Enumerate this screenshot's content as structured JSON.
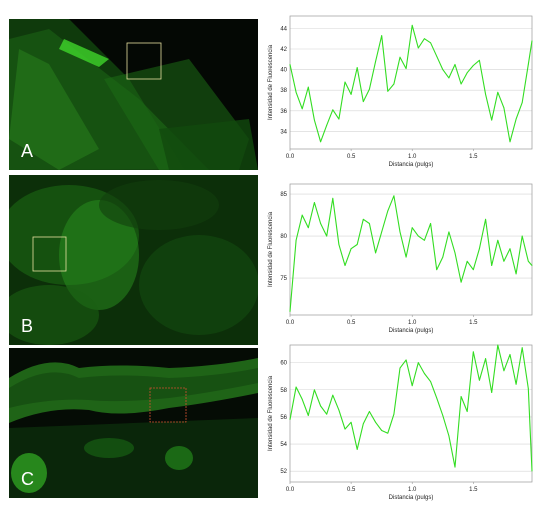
{
  "figure": {
    "panels": [
      {
        "letter": "A"
      },
      {
        "letter": "B"
      },
      {
        "letter": "C"
      }
    ],
    "colors": {
      "line": "#33dd22",
      "grid": "#d4d4d4",
      "frame": "#999999",
      "roi": "#e8e0a0",
      "roi_red": "#d05030"
    }
  },
  "chart_data": [
    {
      "type": "line",
      "xlabel": "Distancia (pulgs)",
      "ylabel": "Intensidad de Fluorescencia",
      "xlim": [
        0,
        1.98
      ],
      "ylim": [
        32.3,
        45.2
      ],
      "xticks": [
        0.0,
        0.5,
        1.0,
        1.5
      ],
      "xtick_labels": [
        "0.0",
        "0.5",
        "1.0",
        "1.5"
      ],
      "yticks": [
        34,
        36,
        38,
        40,
        42,
        44
      ],
      "ytick_labels": [
        "34",
        "36",
        "38",
        "40",
        "42",
        "44"
      ],
      "grid": true,
      "x": [
        0.0,
        0.05,
        0.1,
        0.15,
        0.2,
        0.25,
        0.3,
        0.35,
        0.4,
        0.45,
        0.5,
        0.55,
        0.6,
        0.65,
        0.7,
        0.75,
        0.8,
        0.85,
        0.9,
        0.95,
        1.0,
        1.05,
        1.1,
        1.15,
        1.2,
        1.25,
        1.3,
        1.35,
        1.4,
        1.45,
        1.5,
        1.55,
        1.6,
        1.65,
        1.7,
        1.75,
        1.8,
        1.85,
        1.9,
        1.95,
        1.98
      ],
      "y": [
        40.5,
        37.8,
        36.2,
        38.3,
        35.1,
        33.0,
        34.6,
        36.1,
        35.2,
        38.8,
        37.6,
        40.2,
        36.9,
        38.1,
        40.8,
        43.3,
        37.9,
        38.6,
        41.2,
        40.1,
        44.3,
        42.1,
        43.0,
        42.6,
        41.3,
        40.0,
        39.2,
        40.5,
        38.6,
        39.7,
        40.4,
        40.9,
        37.6,
        35.1,
        37.8,
        36.3,
        33.0,
        35.2,
        36.8,
        40.5,
        42.8
      ]
    },
    {
      "type": "line",
      "xlabel": "Distancia (pulgs)",
      "ylabel": "Intensidad de Fluorescencia",
      "xlim": [
        0,
        1.98
      ],
      "ylim": [
        70.6,
        86.2
      ],
      "xticks": [
        0.0,
        0.5,
        1.0,
        1.5
      ],
      "xtick_labels": [
        "0.0",
        "0.5",
        "1.0",
        "1.5"
      ],
      "yticks": [
        75,
        80,
        85
      ],
      "ytick_labels": [
        "75",
        "80",
        "85"
      ],
      "grid": true,
      "x": [
        0.0,
        0.05,
        0.1,
        0.15,
        0.2,
        0.25,
        0.3,
        0.35,
        0.4,
        0.45,
        0.5,
        0.55,
        0.6,
        0.65,
        0.7,
        0.75,
        0.8,
        0.85,
        0.9,
        0.95,
        1.0,
        1.05,
        1.1,
        1.15,
        1.2,
        1.25,
        1.3,
        1.35,
        1.4,
        1.45,
        1.5,
        1.55,
        1.6,
        1.65,
        1.7,
        1.75,
        1.8,
        1.85,
        1.9,
        1.95,
        1.98
      ],
      "y": [
        71.0,
        79.5,
        82.5,
        81.0,
        84.0,
        81.5,
        80.0,
        84.5,
        79.0,
        76.5,
        78.5,
        79.0,
        82.0,
        81.5,
        78.0,
        80.5,
        83.0,
        84.8,
        80.5,
        77.5,
        81.0,
        80.0,
        79.5,
        81.5,
        76.0,
        77.5,
        80.5,
        78.0,
        74.5,
        77.0,
        76.0,
        78.5,
        82.0,
        76.5,
        79.5,
        77.0,
        78.5,
        75.5,
        80.0,
        77.0,
        76.5
      ]
    },
    {
      "type": "line",
      "xlabel": "Distancia (pulgs)",
      "ylabel": "Intensidad de Fluorescencia",
      "xlim": [
        0,
        1.98
      ],
      "ylim": [
        51.2,
        61.3
      ],
      "xticks": [
        0.0,
        0.5,
        1.0,
        1.5
      ],
      "xtick_labels": [
        "0.0",
        "0.5",
        "1.0",
        "1.5"
      ],
      "yticks": [
        52,
        54,
        56,
        58,
        60
      ],
      "ytick_labels": [
        "52",
        "54",
        "56",
        "58",
        "60"
      ],
      "grid": true,
      "x": [
        0.0,
        0.05,
        0.1,
        0.15,
        0.2,
        0.25,
        0.3,
        0.35,
        0.4,
        0.45,
        0.5,
        0.55,
        0.6,
        0.65,
        0.7,
        0.75,
        0.8,
        0.85,
        0.9,
        0.95,
        1.0,
        1.05,
        1.1,
        1.15,
        1.2,
        1.25,
        1.3,
        1.35,
        1.4,
        1.45,
        1.5,
        1.55,
        1.6,
        1.65,
        1.7,
        1.75,
        1.8,
        1.85,
        1.9,
        1.95,
        1.98
      ],
      "y": [
        55.8,
        58.2,
        57.3,
        56.1,
        58.0,
        56.8,
        56.2,
        57.6,
        56.5,
        55.1,
        55.6,
        53.6,
        55.5,
        56.4,
        55.6,
        55.0,
        54.8,
        56.2,
        59.6,
        60.2,
        58.3,
        60.0,
        59.2,
        58.6,
        57.4,
        56.1,
        54.6,
        52.3,
        57.5,
        56.4,
        60.8,
        58.7,
        60.3,
        57.8,
        61.3,
        59.4,
        60.6,
        58.4,
        61.1,
        58.1,
        52.0
      ]
    }
  ]
}
